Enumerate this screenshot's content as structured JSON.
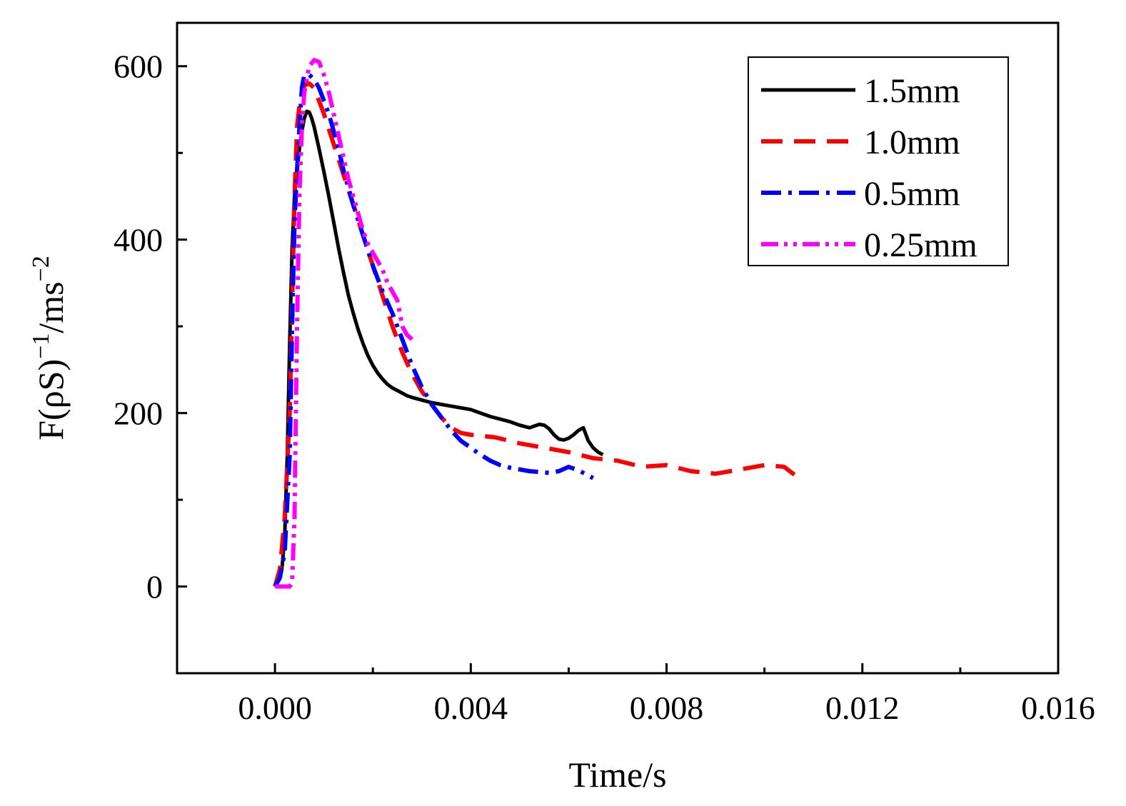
{
  "chart_data": {
    "type": "line",
    "title": "",
    "xlabel": "Time/s",
    "ylabel": {
      "base": "F(ρS)",
      "sup1": "−1",
      "mid": "/ms",
      "sup2": "−2"
    },
    "xlim": [
      -0.002,
      0.016
    ],
    "ylim": [
      -100,
      650
    ],
    "x_ticks": [
      0.0,
      0.004,
      0.008,
      0.012,
      0.016
    ],
    "x_tick_labels": [
      "0.000",
      "0.004",
      "0.008",
      "0.012",
      "0.016"
    ],
    "x_minor_ticks": [
      0.002,
      0.006,
      0.01,
      0.014
    ],
    "y_ticks": [
      0,
      200,
      400,
      600
    ],
    "y_tick_labels": [
      "0",
      "200",
      "400",
      "600"
    ],
    "y_minor_ticks": [
      100,
      300,
      500
    ],
    "grid": false,
    "legend_position": "top-right",
    "series": [
      {
        "name": "1.5mm",
        "color": "#000000",
        "dash": "solid",
        "x": [
          0,
          5e-05,
          0.0001,
          0.00015,
          0.0002,
          0.00025,
          0.0003,
          0.00035,
          0.0004,
          0.00045,
          0.0005,
          0.00055,
          0.0006,
          0.00065,
          0.0007,
          0.00075,
          0.0008,
          0.0009,
          0.001,
          0.0011,
          0.0012,
          0.0013,
          0.0014,
          0.0015,
          0.0016,
          0.0017,
          0.0018,
          0.0019,
          0.002,
          0.0021,
          0.0022,
          0.0023,
          0.0024,
          0.0025,
          0.0026,
          0.0027,
          0.0028,
          0.003,
          0.0032,
          0.0034,
          0.0036,
          0.0038,
          0.004,
          0.0042,
          0.0044,
          0.0046,
          0.0048,
          0.005,
          0.0052,
          0.0054,
          0.0055,
          0.0056,
          0.0057,
          0.0058,
          0.0059,
          0.006,
          0.0061,
          0.0062,
          0.0063,
          0.0064,
          0.0065,
          0.0066,
          0.0067
        ],
        "y": [
          0,
          5,
          10,
          25,
          60,
          150,
          280,
          390,
          450,
          480,
          505,
          525,
          540,
          548,
          547,
          540,
          530,
          505,
          478,
          450,
          420,
          390,
          362,
          336,
          315,
          296,
          280,
          266,
          255,
          246,
          239,
          233,
          229,
          226,
          223,
          220,
          218,
          215,
          212,
          210,
          208,
          206,
          204,
          200,
          196,
          193,
          190,
          186,
          183,
          187,
          186,
          182,
          175,
          170,
          169,
          171,
          175,
          180,
          183,
          168,
          160,
          155,
          152
        ]
      },
      {
        "name": "1.0mm",
        "color": "#ff0000",
        "dash": "dashed",
        "x": [
          0,
          0.0001,
          0.0002,
          0.0003,
          0.00035,
          0.0004,
          0.00045,
          0.0005,
          0.0006,
          0.0007,
          0.0008,
          0.0009,
          0.001,
          0.0012,
          0.0014,
          0.0016,
          0.0018,
          0.002,
          0.0022,
          0.0024,
          0.0026,
          0.0028,
          0.003,
          0.0032,
          0.0034,
          0.0036,
          0.0038,
          0.004,
          0.0045,
          0.005,
          0.0055,
          0.006,
          0.0065,
          0.007,
          0.0075,
          0.008,
          0.0085,
          0.009,
          0.0095,
          0.01,
          0.0104,
          0.0107
        ],
        "y": [
          0,
          20,
          80,
          200,
          320,
          450,
          530,
          555,
          578,
          580,
          575,
          560,
          545,
          510,
          475,
          440,
          405,
          370,
          335,
          300,
          270,
          245,
          225,
          210,
          195,
          183,
          177,
          175,
          172,
          165,
          160,
          155,
          148,
          145,
          138,
          140,
          133,
          130,
          135,
          140,
          138,
          125
        ]
      },
      {
        "name": "0.5mm",
        "color": "#0000ff",
        "dash": "dashdot",
        "x": [
          0,
          0.0001,
          0.0002,
          0.0003,
          0.00035,
          0.0004,
          0.00045,
          0.0005,
          0.00055,
          0.0006,
          0.0007,
          0.0008,
          0.0009,
          0.001,
          0.0011,
          0.0012,
          0.0013,
          0.0014,
          0.0015,
          0.0016,
          0.0018,
          0.002,
          0.0022,
          0.0024,
          0.0026,
          0.0028,
          0.003,
          0.0032,
          0.0034,
          0.0036,
          0.0038,
          0.004,
          0.0042,
          0.0044,
          0.0046,
          0.0048,
          0.005,
          0.0052,
          0.0054,
          0.0056,
          0.0058,
          0.006,
          0.0062,
          0.0064,
          0.0065
        ],
        "y": [
          0,
          10,
          40,
          150,
          300,
          420,
          480,
          530,
          575,
          590,
          590,
          585,
          575,
          560,
          545,
          525,
          505,
          480,
          460,
          440,
          405,
          370,
          340,
          315,
          285,
          255,
          230,
          210,
          195,
          180,
          168,
          160,
          152,
          145,
          140,
          137,
          135,
          133,
          132,
          131,
          133,
          138,
          134,
          128,
          125
        ]
      },
      {
        "name": "0.25mm",
        "color": "#ff00ff",
        "dash": "dashdotdot",
        "x": [
          0,
          0.0001,
          0.0002,
          0.0003,
          0.00035,
          0.0004,
          0.00045,
          0.0005,
          0.00055,
          0.0006,
          0.0007,
          0.0008,
          0.0009,
          0.001,
          0.0011,
          0.0012,
          0.0013,
          0.0014,
          0.0015,
          0.0016,
          0.0017,
          0.0018,
          0.0019,
          0.002,
          0.0021,
          0.0022,
          0.0023,
          0.0024,
          0.0025,
          0.0026,
          0.0027,
          0.0028
        ],
        "y": [
          0,
          0,
          0,
          0,
          5,
          80,
          300,
          450,
          530,
          570,
          600,
          607,
          605,
          590,
          570,
          545,
          520,
          495,
          470,
          450,
          430,
          410,
          395,
          385,
          375,
          365,
          350,
          340,
          330,
          300,
          290,
          285
        ]
      }
    ]
  }
}
